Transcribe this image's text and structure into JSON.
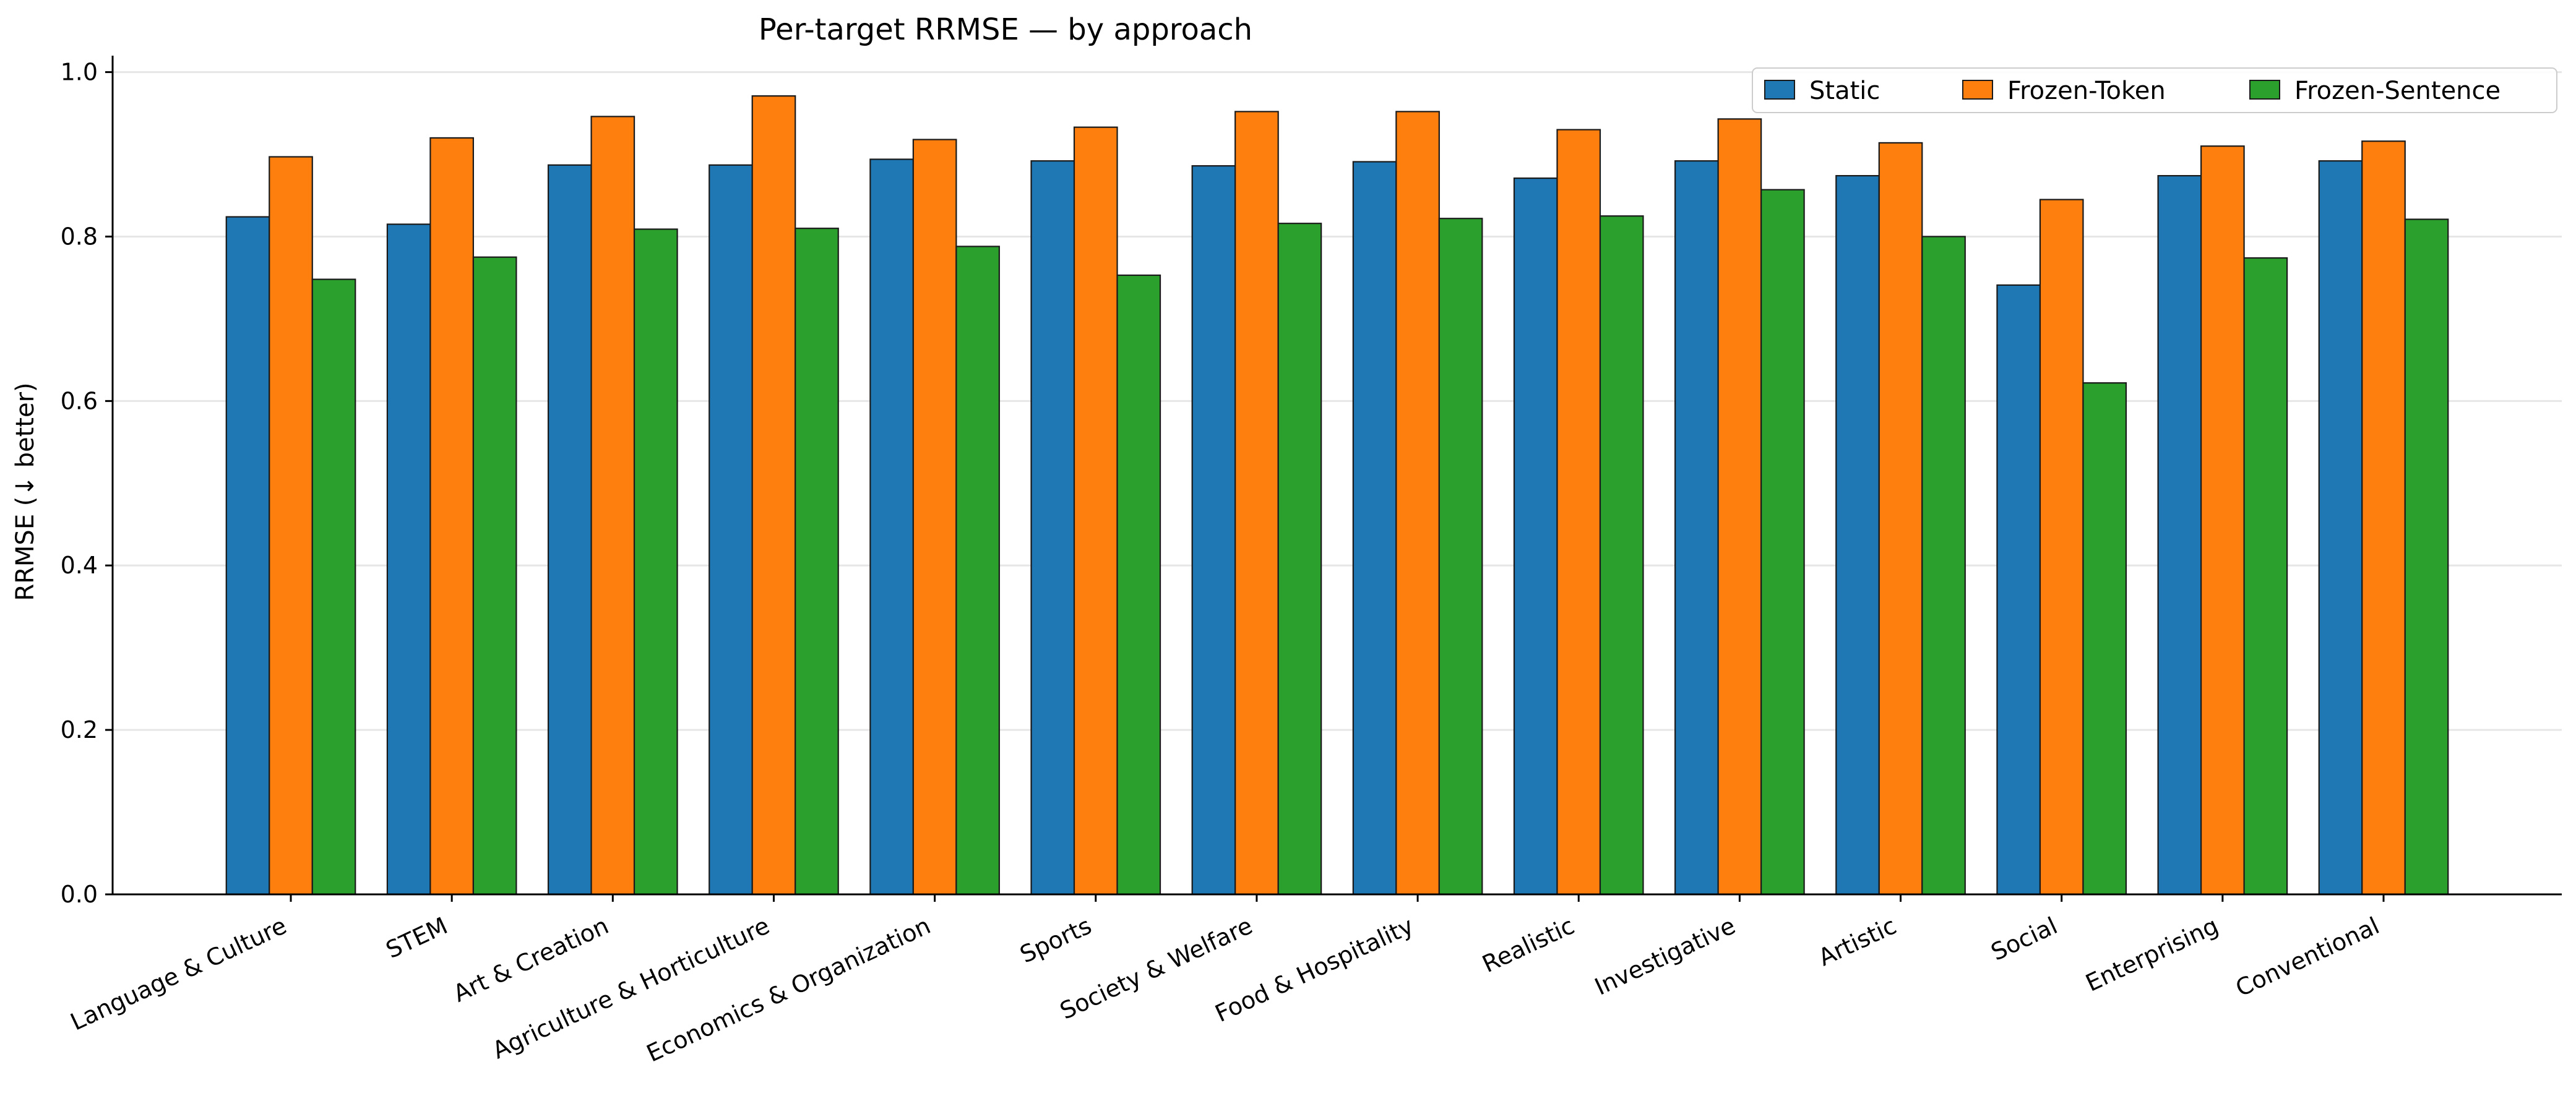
{
  "chart_data": {
    "type": "bar",
    "title": "Per-target RRMSE — by approach",
    "xlabel": "",
    "ylabel": "RRMSE (↓ better)",
    "ylim": [
      0,
      1.02
    ],
    "yticks": [
      0.0,
      0.2,
      0.4,
      0.6,
      0.8,
      1.0
    ],
    "ytick_labels": [
      "0.0",
      "0.2",
      "0.4",
      "0.6",
      "0.8",
      "1.0"
    ],
    "grid": "horizontal",
    "legend_position": "top-right",
    "categories": [
      "Language & Culture",
      "STEM",
      "Art & Creation",
      "Agriculture & Horticulture",
      "Economics & Organization",
      "Sports",
      "Society & Welfare",
      "Food & Hospitality",
      "Realistic",
      "Investigative",
      "Artistic",
      "Social",
      "Enterprising",
      "Conventional"
    ],
    "series": [
      {
        "name": "Static",
        "color": "#1f77b4",
        "values": [
          0.824,
          0.815,
          0.887,
          0.887,
          0.894,
          0.892,
          0.886,
          0.891,
          0.871,
          0.892,
          0.874,
          0.741,
          0.874,
          0.892
        ]
      },
      {
        "name": "Frozen-Token",
        "color": "#ff7f0e",
        "values": [
          0.897,
          0.92,
          0.946,
          0.971,
          0.918,
          0.933,
          0.952,
          0.952,
          0.93,
          0.943,
          0.914,
          0.845,
          0.91,
          0.916
        ]
      },
      {
        "name": "Frozen-Sentence",
        "color": "#2ca02c",
        "values": [
          0.748,
          0.775,
          0.809,
          0.81,
          0.788,
          0.753,
          0.816,
          0.822,
          0.825,
          0.857,
          0.8,
          0.622,
          0.774,
          0.821
        ]
      }
    ]
  }
}
